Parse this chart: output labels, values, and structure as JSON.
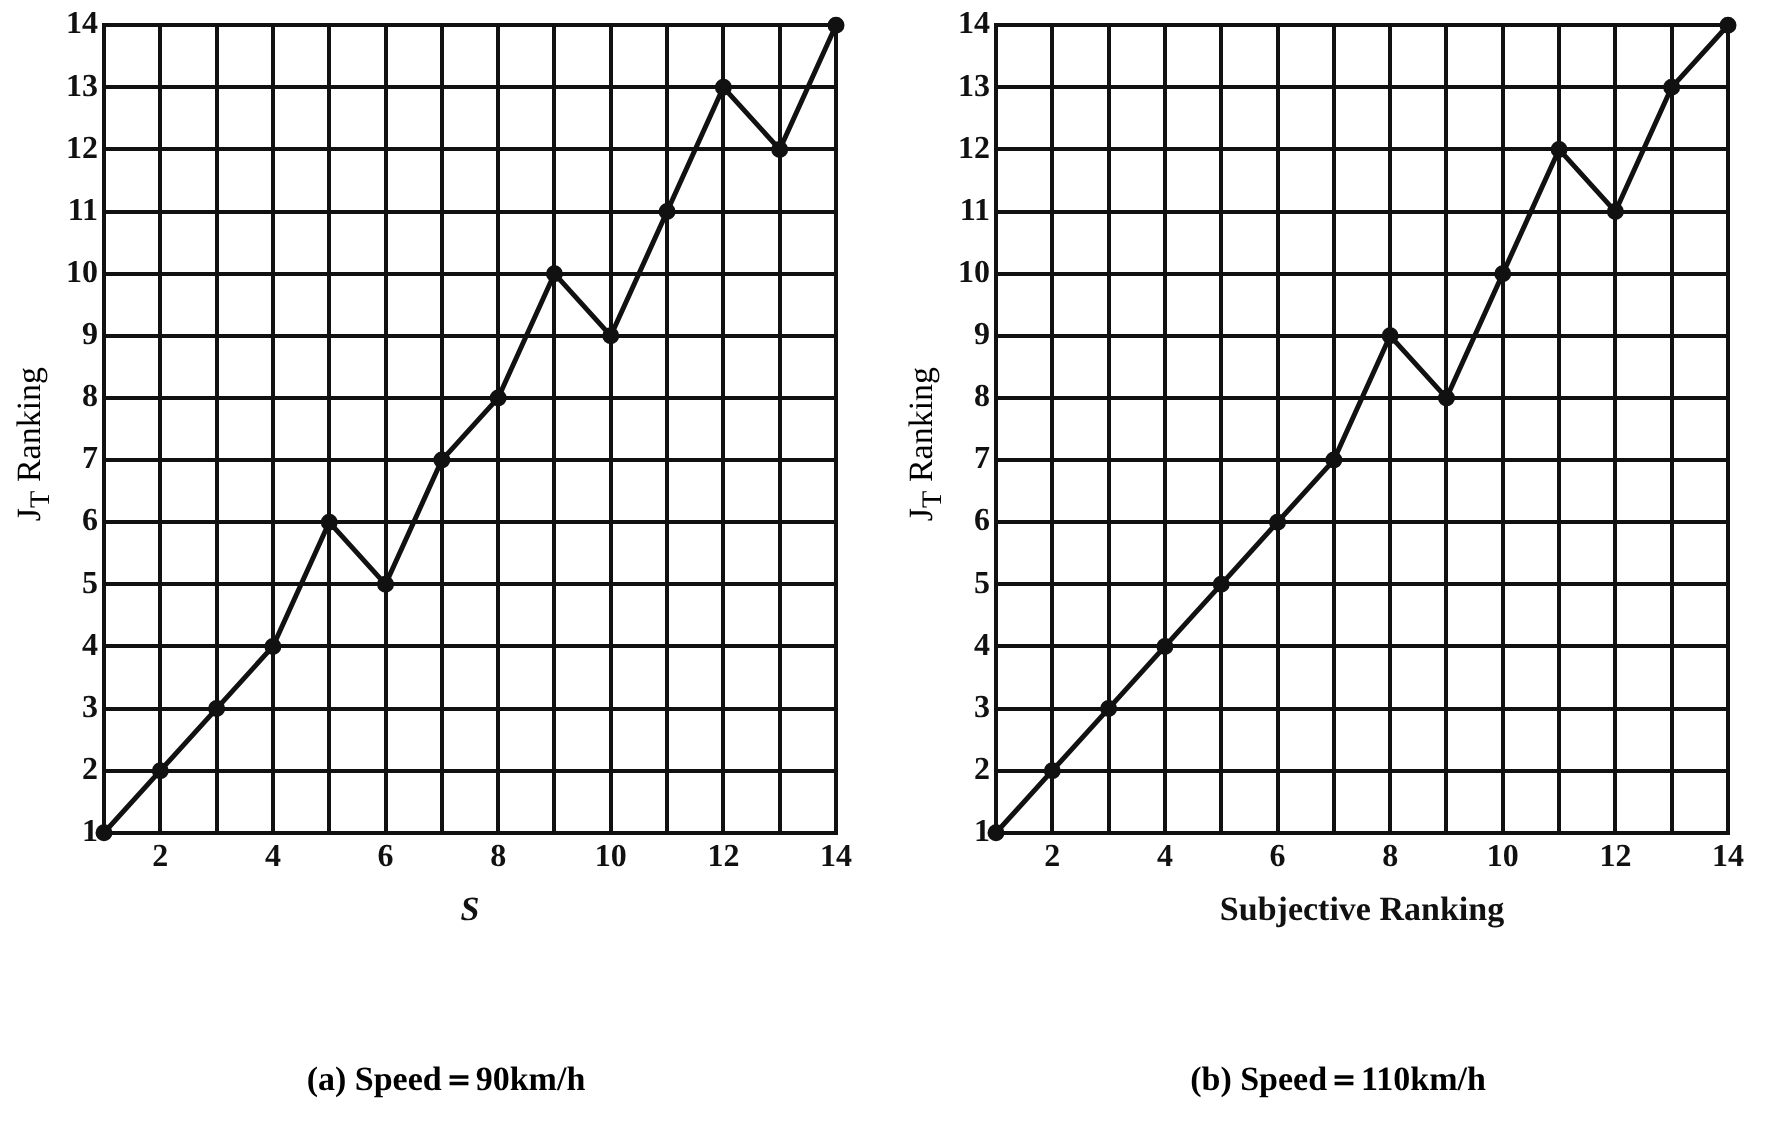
{
  "chart_data": [
    {
      "type": "line",
      "title": "(a) Speed＝90km/h",
      "xlabel": "S",
      "ylabel": "J$_{T}$ Ranking",
      "x": [
        1,
        2,
        3,
        4,
        5,
        6,
        7,
        8,
        9,
        10,
        11,
        12,
        13,
        14
      ],
      "series": [
        {
          "color": "#111111",
          "values": [
            1,
            2,
            3,
            4,
            6,
            5,
            7,
            8,
            10,
            9,
            11,
            13,
            12,
            14
          ]
        }
      ],
      "xlim": [
        1,
        14
      ],
      "ylim": [
        1,
        14
      ],
      "xticks": [
        {
          "value": 1,
          "label": null
        },
        2,
        {
          "value": 3,
          "label": null
        },
        4,
        {
          "value": 5,
          "label": null
        },
        6,
        {
          "value": 7,
          "label": null
        },
        8,
        {
          "value": 9,
          "label": null
        },
        10,
        {
          "value": 11,
          "label": null
        },
        12,
        {
          "value": 13,
          "label": null
        },
        14
      ],
      "yticks": [
        1,
        2,
        3,
        4,
        5,
        6,
        7,
        8,
        9,
        10,
        11,
        12,
        13,
        14
      ],
      "grid": true,
      "legend": false,
      "marker": "circle",
      "line_style": "solid"
    },
    {
      "type": "line",
      "title": "(b) Speed＝110km/h",
      "xlabel": "Subjective Ranking",
      "ylabel": "J$_{T}$ Ranking",
      "x": [
        1,
        2,
        3,
        4,
        5,
        6,
        7,
        8,
        9,
        10,
        11,
        12,
        13,
        14
      ],
      "series": [
        {
          "color": "#111111",
          "values": [
            1,
            2,
            3,
            4,
            5,
            6,
            7,
            9,
            8,
            10,
            12,
            11,
            13,
            14
          ]
        }
      ],
      "xlim": [
        1,
        14
      ],
      "ylim": [
        1,
        14
      ],
      "xticks": [
        {
          "value": 1,
          "label": null
        },
        2,
        {
          "value": 3,
          "label": null
        },
        4,
        {
          "value": 5,
          "label": null
        },
        6,
        {
          "value": 7,
          "label": null
        },
        8,
        {
          "value": 9,
          "label": null
        },
        10,
        {
          "value": 11,
          "label": null
        },
        12,
        {
          "value": 13,
          "label": null
        },
        14
      ],
      "yticks": [
        1,
        2,
        3,
        4,
        5,
        6,
        7,
        8,
        9,
        10,
        11,
        12,
        13,
        14
      ],
      "grid": true,
      "legend": false,
      "marker": "circle",
      "line_style": "solid"
    }
  ]
}
